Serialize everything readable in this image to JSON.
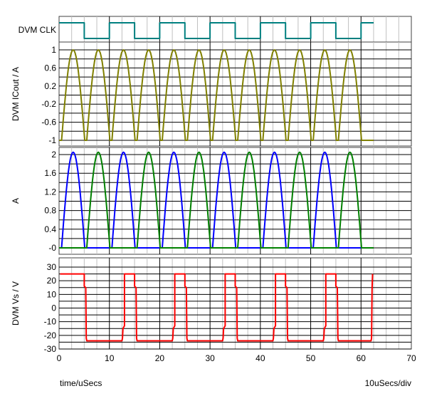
{
  "footer": {
    "xlabel": "time/uSecs",
    "scale": "10uSecs/div"
  },
  "colors": {
    "clk": "#008080",
    "iout": "#808000",
    "blue": "#0000ff",
    "green": "#008000",
    "vs": "#ff0000",
    "grid_major": "#000000",
    "grid_minor": "#c0c0c0",
    "axis": "#404040"
  },
  "chart_data": [
    {
      "type": "line",
      "panel": "clk",
      "ylabel": "DVM CLK",
      "xlim": [
        0,
        70
      ],
      "ylim": [
        0,
        1
      ],
      "series": [
        {
          "color": "#008080",
          "x": [
            0,
            5,
            5,
            10,
            10,
            15,
            15,
            20,
            20,
            25,
            25,
            30,
            30,
            35,
            35,
            40,
            40,
            45,
            45,
            50,
            50,
            55,
            55,
            60,
            60,
            62.5
          ],
          "y": [
            1,
            1,
            0,
            0,
            1,
            1,
            0,
            0,
            1,
            1,
            0,
            0,
            1,
            1,
            0,
            0,
            1,
            1,
            0,
            0,
            1,
            1,
            0,
            0,
            1,
            1
          ]
        }
      ]
    },
    {
      "type": "line",
      "panel": "iout",
      "ylabel": "DVM ICout / A",
      "xlim": [
        0,
        70
      ],
      "ylim": [
        -1,
        1
      ],
      "yticks": [
        1,
        0.6,
        0.2,
        -0.2,
        -0.6,
        -1
      ],
      "ytick_labels": [
        "1",
        "0.6",
        "0.2",
        "-0.2",
        "-0.6",
        "-1"
      ],
      "series": [
        {
          "color": "#808000",
          "waveform": "rectified-sine-pulses",
          "pulse_starts": [
            0.5,
            5.5,
            10.5,
            15.5,
            20.5,
            25.5,
            30.5,
            35.5,
            40.5,
            45.5,
            50.5,
            55.5
          ],
          "pulse_width": 4.6,
          "low": -1,
          "high": 1,
          "x_end": 62.5
        }
      ]
    },
    {
      "type": "line",
      "panel": "currents",
      "ylabel": "A",
      "xlim": [
        0,
        70
      ],
      "ylim": [
        0,
        2.1
      ],
      "yticks": [
        2,
        1.6,
        1.2,
        0.8,
        0.4,
        0
      ],
      "ytick_labels": [
        "2",
        "1.6",
        "1.2",
        "0.8",
        "0.4",
        "-0"
      ],
      "series": [
        {
          "color": "#0000ff",
          "waveform": "rectified-sine-pulses",
          "pulse_starts": [
            0.5,
            10.5,
            20.5,
            30.5,
            40.5,
            50.5
          ],
          "pulse_width": 4.6,
          "low": 0,
          "high": 2.05,
          "x_end": 62.5
        },
        {
          "color": "#008000",
          "waveform": "rectified-sine-pulses",
          "pulse_starts": [
            5.5,
            15.5,
            25.5,
            35.5,
            45.5,
            55.5
          ],
          "pulse_width": 4.6,
          "low": 0,
          "high": 2.05,
          "x_end": 62.5
        }
      ]
    },
    {
      "type": "line",
      "panel": "vs",
      "ylabel": "DVM Vs / V",
      "xlim": [
        0,
        70
      ],
      "ylim": [
        -32,
        33
      ],
      "yticks": [
        30,
        20,
        10,
        0,
        -10,
        -20,
        -30
      ],
      "ytick_labels": [
        "30",
        "20",
        "10",
        "0",
        "-10",
        "-20",
        "-30"
      ],
      "xticks": [
        0,
        10,
        20,
        30,
        40,
        50,
        60,
        70
      ],
      "xtick_labels": [
        "0",
        "10",
        "20",
        "30",
        "40",
        "50",
        "60",
        "70"
      ],
      "series": [
        {
          "color": "#ff0000",
          "x": [
            0.2,
            5.0,
            5.0,
            5.3,
            5.4,
            5.5,
            12.5,
            12.6,
            12.7,
            13.0,
            13.0,
            15.0,
            15.0,
            15.3,
            15.4,
            15.5,
            22.5,
            22.6,
            22.7,
            23.0,
            23.0,
            25.0,
            25.0,
            25.3,
            25.4,
            25.5,
            32.5,
            32.6,
            32.7,
            33.0,
            33.0,
            35.0,
            35.0,
            35.3,
            35.4,
            35.5,
            42.5,
            42.6,
            42.7,
            43.0,
            43.0,
            45.0,
            45.0,
            45.3,
            45.4,
            45.5,
            52.5,
            52.6,
            52.7,
            53.0,
            53.0,
            55.0,
            55.0,
            55.3,
            55.4,
            55.5,
            62.0,
            62.1,
            62.2,
            62.3
          ],
          "y": [
            25,
            25,
            16,
            15,
            -22,
            -24,
            -24,
            -22,
            -15,
            -13,
            25,
            25,
            16,
            15,
            -22,
            -24,
            -24,
            -22,
            -15,
            -13,
            25,
            25,
            16,
            15,
            -22,
            -24,
            -24,
            -22,
            -15,
            -13,
            25,
            25,
            16,
            15,
            -22,
            -24,
            -24,
            -22,
            -15,
            -13,
            25,
            25,
            16,
            15,
            -22,
            -24,
            -24,
            -22,
            -15,
            -13,
            25,
            25,
            16,
            15,
            -22,
            -24,
            -24,
            -22,
            14,
            25
          ]
        }
      ]
    }
  ]
}
